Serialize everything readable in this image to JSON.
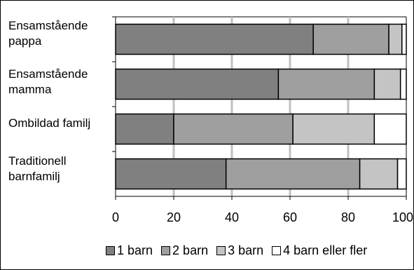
{
  "chart_data": {
    "type": "bar",
    "orientation": "horizontal",
    "stacked": true,
    "categories": [
      "Ensamstående\npappa",
      "Ensamstående\nmamma",
      "Ombildad familj",
      "Traditionell\nbarnfamilj"
    ],
    "series": [
      {
        "name": "1 barn",
        "values": [
          68,
          56,
          20,
          38
        ],
        "color": "#808080"
      },
      {
        "name": "2 barn",
        "values": [
          26,
          33,
          41,
          46
        ],
        "color": "#9f9f9f"
      },
      {
        "name": "3 barn",
        "values": [
          4.5,
          9,
          28,
          13
        ],
        "color": "#c4c4c4"
      },
      {
        "name": "4 barn eller fler",
        "values": [
          1.5,
          2,
          11,
          3
        ],
        "color": "#ffffff"
      }
    ],
    "x_ticks": [
      "0",
      "20",
      "40",
      "60",
      "80",
      "100"
    ],
    "xlim": [
      0,
      100
    ],
    "grid": true,
    "legend_position": "bottom"
  }
}
